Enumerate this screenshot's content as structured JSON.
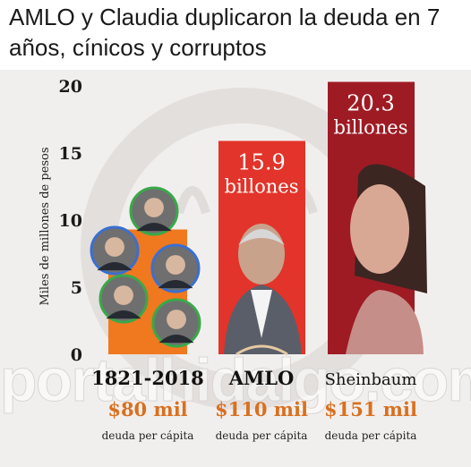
{
  "headline": "AMLO y Claudia duplicaron la deuda en 7 años, cínicos y corruptos",
  "watermark": "portalhidalgo.com",
  "colors": {
    "bar_historic": "#f0781e",
    "bar_amlo": "#e2342a",
    "bar_sheinbaum": "#9e1b24",
    "amount": "#d9701f"
  },
  "chart_data": {
    "type": "bar",
    "ylabel": "Miles de millones de pesos",
    "ylim": [
      0,
      20
    ],
    "yticks": [
      "0",
      "5",
      "10",
      "15",
      "20"
    ],
    "categories": [
      "1821-2018",
      "AMLO",
      "Sheinbaum"
    ],
    "values": [
      9.3,
      15.9,
      20.3
    ],
    "bar_labels": [
      {
        "value": "",
        "unit": ""
      },
      {
        "value": "15.9",
        "unit": "billones"
      },
      {
        "value": "20.3",
        "unit": "billones"
      }
    ],
    "per_capita": [
      "$80 mil",
      "$110 mil",
      "$151 mil"
    ],
    "per_capita_caption": "deuda per cápita"
  }
}
